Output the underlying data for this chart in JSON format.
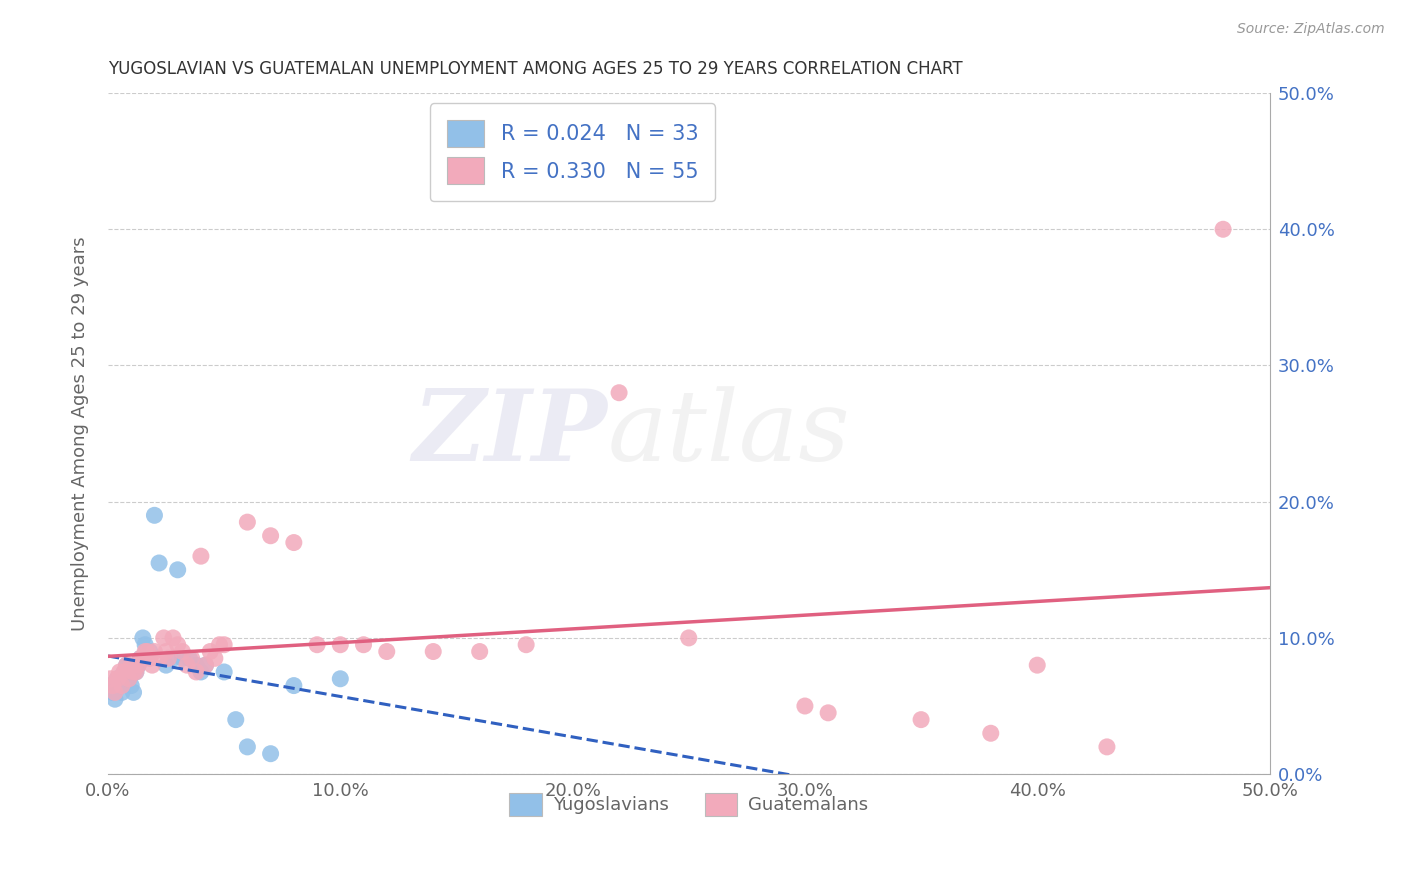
{
  "title": "YUGOSLAVIAN VS GUATEMALAN UNEMPLOYMENT AMONG AGES 25 TO 29 YEARS CORRELATION CHART",
  "source": "Source: ZipAtlas.com",
  "ylabel": "Unemployment Among Ages 25 to 29 years",
  "xlim": [
    0.0,
    0.5
  ],
  "ylim": [
    0.0,
    0.5
  ],
  "ytick_vals": [
    0.0,
    0.1,
    0.2,
    0.3,
    0.4,
    0.5
  ],
  "xtick_vals": [
    0.0,
    0.1,
    0.2,
    0.3,
    0.4,
    0.5
  ],
  "yugoslavian_R": 0.024,
  "yugoslavian_N": 33,
  "guatemalan_R": 0.33,
  "guatemalan_N": 55,
  "blue_dot_color": "#92C0E8",
  "pink_dot_color": "#F2AABB",
  "blue_line_color": "#3060C0",
  "pink_line_color": "#E06080",
  "text_blue_color": "#4472C4",
  "legend_label_blue": "Yugoslavians",
  "legend_label_pink": "Guatemalans",
  "watermark_zip": "ZIP",
  "watermark_atlas": "atlas",
  "background_color": "#FFFFFF",
  "grid_color": "#CCCCCC",
  "axis_label_color": "#666666",
  "right_tick_color": "#4472C4",
  "yugoslavian_x": [
    0.001,
    0.002,
    0.003,
    0.004,
    0.005,
    0.006,
    0.007,
    0.008,
    0.009,
    0.01,
    0.011,
    0.012,
    0.013,
    0.014,
    0.015,
    0.016,
    0.018,
    0.02,
    0.022,
    0.025,
    0.028,
    0.03,
    0.032,
    0.035,
    0.038,
    0.04,
    0.042,
    0.05,
    0.055,
    0.06,
    0.07,
    0.08,
    0.1
  ],
  "yugoslavian_y": [
    0.065,
    0.06,
    0.055,
    0.07,
    0.065,
    0.06,
    0.075,
    0.08,
    0.07,
    0.065,
    0.06,
    0.075,
    0.08,
    0.085,
    0.1,
    0.095,
    0.09,
    0.19,
    0.155,
    0.08,
    0.085,
    0.15,
    0.085,
    0.085,
    0.08,
    0.075,
    0.08,
    0.075,
    0.04,
    0.02,
    0.015,
    0.065,
    0.07
  ],
  "guatemalan_x": [
    0.001,
    0.002,
    0.003,
    0.004,
    0.005,
    0.006,
    0.007,
    0.008,
    0.009,
    0.01,
    0.011,
    0.012,
    0.013,
    0.014,
    0.015,
    0.016,
    0.017,
    0.018,
    0.019,
    0.02,
    0.022,
    0.024,
    0.025,
    0.026,
    0.028,
    0.03,
    0.032,
    0.034,
    0.036,
    0.038,
    0.04,
    0.042,
    0.044,
    0.046,
    0.048,
    0.05,
    0.06,
    0.07,
    0.08,
    0.09,
    0.1,
    0.11,
    0.12,
    0.14,
    0.16,
    0.18,
    0.22,
    0.25,
    0.3,
    0.31,
    0.35,
    0.38,
    0.4,
    0.43,
    0.48
  ],
  "guatemalan_y": [
    0.07,
    0.065,
    0.06,
    0.07,
    0.075,
    0.065,
    0.075,
    0.08,
    0.07,
    0.08,
    0.075,
    0.075,
    0.08,
    0.085,
    0.085,
    0.09,
    0.09,
    0.085,
    0.08,
    0.09,
    0.085,
    0.1,
    0.09,
    0.085,
    0.1,
    0.095,
    0.09,
    0.08,
    0.085,
    0.075,
    0.16,
    0.08,
    0.09,
    0.085,
    0.095,
    0.095,
    0.185,
    0.175,
    0.17,
    0.095,
    0.095,
    0.095,
    0.09,
    0.09,
    0.09,
    0.095,
    0.28,
    0.1,
    0.05,
    0.045,
    0.04,
    0.03,
    0.08,
    0.02,
    0.4
  ]
}
